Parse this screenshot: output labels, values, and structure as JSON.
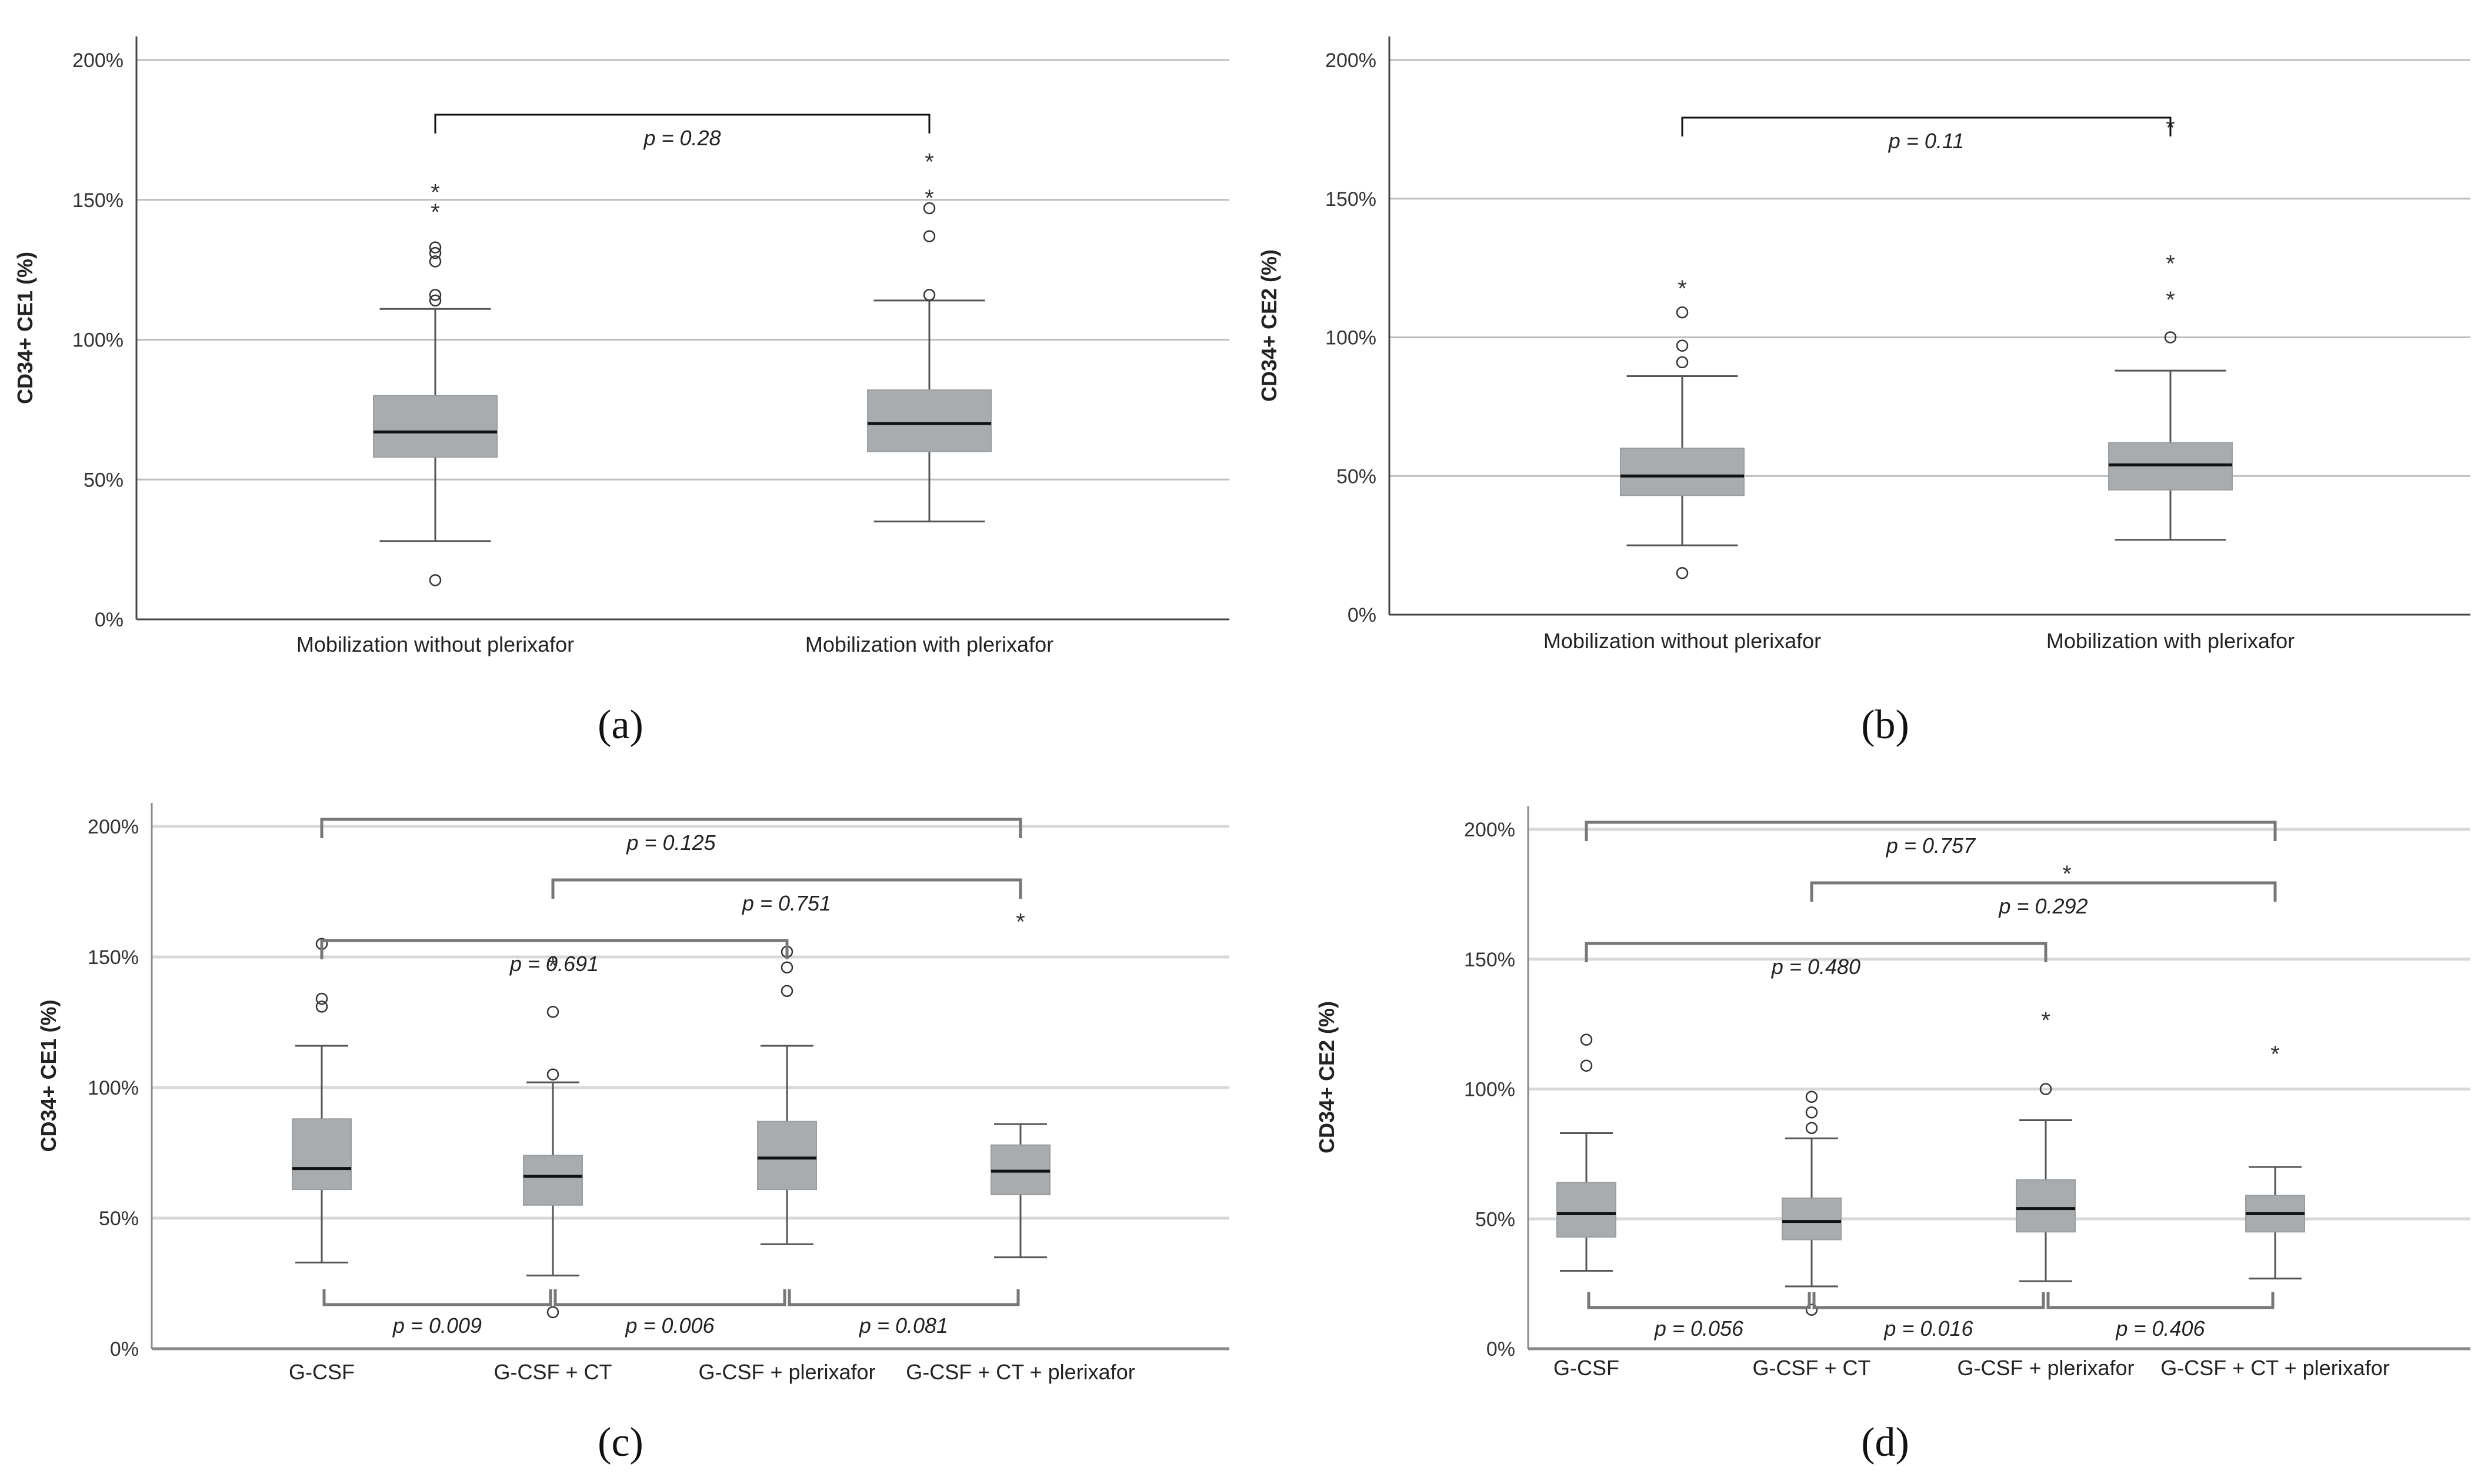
{
  "chart_data": [
    {
      "panel": "(a)",
      "type": "box",
      "ylabel": "CD34+ CE1 (%)",
      "ytick_labels": [
        "0%",
        "50%",
        "100%",
        "150%",
        "200%"
      ],
      "ylim": [
        0,
        2.0
      ],
      "categories": [
        "Mobilization without plerixafor",
        "Mobilization with plerixafor"
      ],
      "boxes": [
        {
          "whisker_low": 0.28,
          "q1": 0.58,
          "median": 0.67,
          "q3": 0.8,
          "whisker_high": 1.11,
          "outliers_circle": [
            0.14,
            1.14,
            1.16,
            1.28,
            1.31,
            1.33
          ],
          "outliers_star": [
            1.47,
            1.54
          ]
        },
        {
          "whisker_low": 0.35,
          "q1": 0.6,
          "median": 0.7,
          "q3": 0.82,
          "whisker_high": 1.14,
          "outliers_circle": [
            1.16,
            1.37,
            1.47
          ],
          "outliers_star": [
            1.52,
            1.65
          ]
        }
      ],
      "comparisons": [
        {
          "from": 0,
          "to": 1,
          "label": "p = 0.28",
          "position": "top"
        }
      ]
    },
    {
      "panel": "(b)",
      "type": "box",
      "ylabel": "CD34+ CE2 (%)",
      "ytick_labels": [
        "0%",
        "50%",
        "100%",
        "150%",
        "200%"
      ],
      "ylim": [
        0,
        2.0
      ],
      "categories": [
        "Mobilization without plerixafor",
        "Mobilization with plerixafor"
      ],
      "boxes": [
        {
          "whisker_low": 0.25,
          "q1": 0.43,
          "median": 0.5,
          "q3": 0.6,
          "whisker_high": 0.86,
          "outliers_circle": [
            0.15,
            0.91,
            0.97,
            1.09
          ],
          "outliers_star": [
            1.19
          ]
        },
        {
          "whisker_low": 0.27,
          "q1": 0.45,
          "median": 0.54,
          "q3": 0.62,
          "whisker_high": 0.88,
          "outliers_circle": [
            1.0
          ],
          "outliers_star": [
            1.15,
            1.28,
            1.77
          ]
        }
      ],
      "comparisons": [
        {
          "from": 0,
          "to": 1,
          "label": "p = 0.11",
          "position": "top"
        }
      ]
    },
    {
      "panel": "(c)",
      "type": "box",
      "ylabel": "CD34+ CE1 (%)",
      "ytick_labels": [
        "0%",
        "50%",
        "100%",
        "150%",
        "200%"
      ],
      "ylim": [
        0,
        2.0
      ],
      "categories": [
        "G-CSF",
        "G-CSF + CT",
        "G-CSF + plerixafor",
        "G-CSF + CT + plerixafor"
      ],
      "boxes": [
        {
          "whisker_low": 0.33,
          "q1": 0.61,
          "median": 0.69,
          "q3": 0.88,
          "whisker_high": 1.16,
          "outliers_circle": [
            1.31,
            1.34,
            1.55
          ],
          "outliers_star": []
        },
        {
          "whisker_low": 0.28,
          "q1": 0.55,
          "median": 0.66,
          "q3": 0.74,
          "whisker_high": 1.02,
          "outliers_circle": [
            0.14,
            1.05,
            1.29
          ],
          "outliers_star": [
            1.48
          ]
        },
        {
          "whisker_low": 0.4,
          "q1": 0.61,
          "median": 0.73,
          "q3": 0.87,
          "whisker_high": 1.16,
          "outliers_circle": [
            1.37,
            1.46,
            1.52
          ],
          "outliers_star": []
        },
        {
          "whisker_low": 0.35,
          "q1": 0.59,
          "median": 0.68,
          "q3": 0.78,
          "whisker_high": 0.86,
          "outliers_circle": [],
          "outliers_star": [
            1.65
          ]
        }
      ],
      "comparisons": [
        {
          "from": 0,
          "to": 3,
          "label": "p = 0.125",
          "position": "top"
        },
        {
          "from": 1,
          "to": 3,
          "label": "p = 0.751",
          "position": "top"
        },
        {
          "from": 0,
          "to": 2,
          "label": "p = 0.691",
          "position": "top"
        },
        {
          "from": 0,
          "to": 1,
          "label": "p = 0.009",
          "position": "bottom"
        },
        {
          "from": 1,
          "to": 2,
          "label": "p = 0.006",
          "position": "bottom"
        },
        {
          "from": 2,
          "to": 3,
          "label": "p = 0.081",
          "position": "bottom"
        }
      ]
    },
    {
      "panel": "(d)",
      "type": "box",
      "ylabel": "CD34+ CE2 (%)",
      "ytick_labels": [
        "0%",
        "50%",
        "100%",
        "150%",
        "200%"
      ],
      "ylim": [
        0,
        2.0
      ],
      "categories": [
        "G-CSF",
        "G-CSF + CT",
        "G-CSF + plerixafor",
        "G-CSF + CT + plerixafor"
      ],
      "boxes": [
        {
          "whisker_low": 0.3,
          "q1": 0.43,
          "median": 0.52,
          "q3": 0.64,
          "whisker_high": 0.83,
          "outliers_circle": [
            1.09,
            1.19
          ],
          "outliers_star": []
        },
        {
          "whisker_low": 0.24,
          "q1": 0.42,
          "median": 0.49,
          "q3": 0.58,
          "whisker_high": 0.81,
          "outliers_circle": [
            0.15,
            0.85,
            0.91,
            0.97
          ],
          "outliers_star": []
        },
        {
          "whisker_low": 0.26,
          "q1": 0.45,
          "median": 0.54,
          "q3": 0.65,
          "whisker_high": 0.88,
          "outliers_circle": [
            1.0
          ],
          "outliers_star": [
            1.28
          ]
        },
        {
          "whisker_low": 0.27,
          "q1": 0.45,
          "median": 0.52,
          "q3": 0.59,
          "whisker_high": 0.7,
          "outliers_circle": [],
          "outliers_star": [
            1.15
          ]
        }
      ],
      "comparisons": [
        {
          "from": 0,
          "to": 3,
          "label": "p = 0.757",
          "position": "top"
        },
        {
          "from": 1,
          "to": 3,
          "label": "p = 0.292",
          "position": "top",
          "star_above": true
        },
        {
          "from": 0,
          "to": 2,
          "label": "p = 0.480",
          "position": "top"
        },
        {
          "from": 0,
          "to": 1,
          "label": "p = 0.056",
          "position": "bottom"
        },
        {
          "from": 1,
          "to": 2,
          "label": "p = 0.016",
          "position": "bottom"
        },
        {
          "from": 2,
          "to": 3,
          "label": "p = 0.406",
          "position": "bottom"
        }
      ]
    }
  ]
}
